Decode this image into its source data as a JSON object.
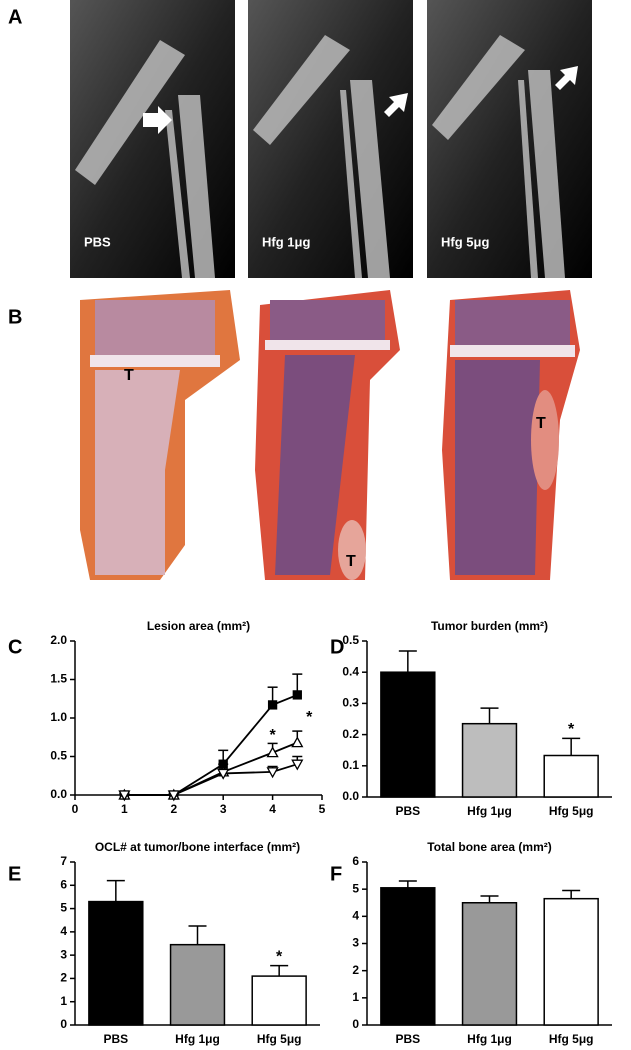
{
  "figure": {
    "panel_a": {
      "label": "A",
      "images": [
        "PBS",
        "Hfg 1μg",
        "Hfg 5μg"
      ]
    },
    "panel_b": {
      "label": "B",
      "tumor_marks": [
        "T",
        "T",
        "T"
      ]
    }
  },
  "chart_data": [
    {
      "type": "line",
      "label": "C",
      "title": "Lesion area (mm²)",
      "x": [
        1,
        2,
        3,
        4,
        4.5
      ],
      "series": [
        {
          "color": "#000",
          "marker": "square",
          "fill": "#000",
          "values": [
            0,
            0,
            0.4,
            1.17,
            1.3
          ],
          "errors": [
            0.02,
            0.02,
            0.18,
            0.23,
            0.27
          ]
        },
        {
          "color": "#000",
          "marker": "triangle-up",
          "fill": "#fff",
          "values": [
            0,
            0,
            0.3,
            0.55,
            0.68
          ],
          "errors": [
            0.02,
            0.02,
            0.1,
            0.12,
            0.15
          ]
        },
        {
          "color": "#000",
          "marker": "triangle-down",
          "fill": "#fff",
          "values": [
            0,
            0,
            0.28,
            0.3,
            0.4
          ],
          "errors": [
            0.02,
            0.02,
            0.05,
            0.07,
            0.1
          ]
        }
      ],
      "xlim": [
        0,
        5
      ],
      "xticks": [
        0,
        1,
        2,
        3,
        4,
        5
      ],
      "ylim": [
        0,
        2
      ],
      "yticks": [
        {
          "value": 0,
          "label": "0.0"
        },
        0.5,
        {
          "value": 1,
          "label": "1.0"
        },
        1.5,
        {
          "value": 2,
          "label": "2.0"
        }
      ],
      "annotations": [
        {
          "text": "*",
          "x": 4,
          "y": 0.77
        },
        {
          "text": "*",
          "x": 4.5,
          "y": 1.0
        }
      ]
    },
    {
      "type": "bar",
      "label": "D",
      "title": "Tumor burden (mm²)",
      "categories": [
        "PBS",
        "Hfg 1μg",
        "Hfg 5μg"
      ],
      "values": [
        0.4,
        0.235,
        0.133
      ],
      "errors": [
        0.068,
        0.05,
        0.055
      ],
      "colors": [
        "#000",
        "#bdbdbd",
        "#fff"
      ],
      "ylim": [
        0,
        0.5
      ],
      "yticks": [
        {
          "value": 0,
          "label": "0.0"
        },
        0.1,
        0.2,
        0.3,
        0.4,
        0.5
      ],
      "annotations": [
        {
          "text": "*",
          "category": 2,
          "y": 0.215
        }
      ]
    },
    {
      "type": "bar",
      "label": "E",
      "title": "OCL# at tumor/bone interface (mm²)",
      "categories": [
        "PBS",
        "Hfg 1μg",
        "Hfg 5μg"
      ],
      "values": [
        5.3,
        3.45,
        2.1
      ],
      "errors": [
        0.9,
        0.8,
        0.45
      ],
      "colors": [
        "#000",
        "#999",
        "#fff"
      ],
      "ylim": [
        0,
        7
      ],
      "yticks": [
        0,
        1,
        2,
        3,
        4,
        5,
        6,
        7
      ],
      "annotations": [
        {
          "text": "*",
          "category": 2,
          "y": 2.9
        }
      ]
    },
    {
      "type": "bar",
      "label": "F",
      "title": "Total bone area (mm²)",
      "categories": [
        "PBS",
        "Hfg 1μg",
        "Hfg 5μg"
      ],
      "values": [
        5.05,
        4.5,
        4.65
      ],
      "errors": [
        0.25,
        0.25,
        0.3
      ],
      "colors": [
        "#000",
        "#999",
        "#fff"
      ],
      "ylim": [
        0,
        6
      ],
      "yticks": [
        0,
        1,
        2,
        3,
        4,
        5,
        6
      ]
    }
  ]
}
